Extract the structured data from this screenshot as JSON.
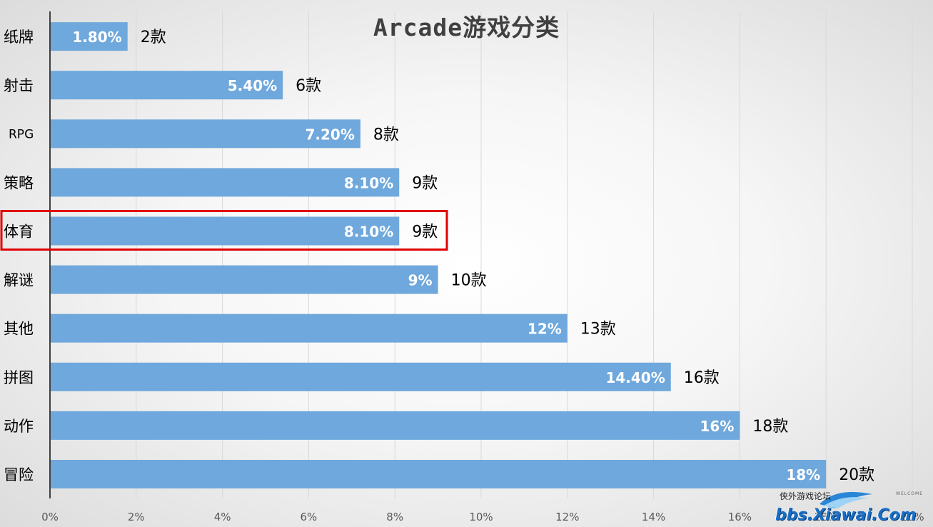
{
  "chart_data": {
    "type": "bar",
    "orientation": "horizontal",
    "title": "Arcade游戏分类",
    "categories": [
      "冒险",
      "动作",
      "拼图",
      "其他",
      "解谜",
      "体育",
      "策略",
      "RPG",
      "射击",
      "纸牌"
    ],
    "values": [
      18,
      16,
      14.4,
      12,
      9,
      8.1,
      8.1,
      7.2,
      5.4,
      1.8
    ],
    "percent_labels": [
      "18%",
      "16%",
      "14.40%",
      "12%",
      "9%",
      "8.10%",
      "8.10%",
      "7.20%",
      "5.40%",
      "1.80%"
    ],
    "count_labels": [
      "20款",
      "18款",
      "16款",
      "13款",
      "10款",
      "9款",
      "9款",
      "8款",
      "6款",
      "2款"
    ],
    "xlim": [
      0,
      20
    ],
    "x_ticks": [
      "0%",
      "2%",
      "4%",
      "6%",
      "8%",
      "10%",
      "12%",
      "14%",
      "16%",
      "18%",
      "20%"
    ],
    "grid": "vertical",
    "highlighted_category": "体育",
    "colors": {
      "bar": "#6fa8dc",
      "highlight_box": "#e00000",
      "grid": "#d9d9d9",
      "text": "#000000"
    }
  },
  "watermark": {
    "cn": "侠外游戏论坛",
    "url": "bbs.Xiawai.Com",
    "welcome": "WELCOME"
  }
}
